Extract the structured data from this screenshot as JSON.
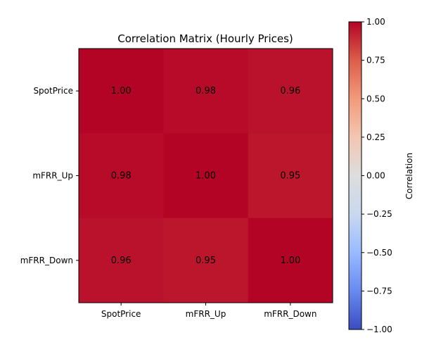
{
  "chart_data": {
    "type": "heatmap",
    "title": "Correlation Matrix (Hourly Prices)",
    "x_categories": [
      "SpotPrice",
      "mFRR_Up",
      "mFRR_Down"
    ],
    "y_categories": [
      "SpotPrice",
      "mFRR_Up",
      "mFRR_Down"
    ],
    "values": [
      [
        1.0,
        0.98,
        0.96
      ],
      [
        0.98,
        1.0,
        0.95
      ],
      [
        0.96,
        0.95,
        1.0
      ]
    ],
    "cell_labels": [
      [
        "1.00",
        "0.98",
        "0.96"
      ],
      [
        "0.98",
        "1.00",
        "0.95"
      ],
      [
        "0.96",
        "0.95",
        "1.00"
      ]
    ],
    "colormap": "coolwarm",
    "vmin": -1.0,
    "vmax": 1.0,
    "colorbar": {
      "label": "Correlation",
      "ticks": [
        -1.0,
        -0.75,
        -0.5,
        -0.25,
        0.0,
        0.25,
        0.5,
        0.75,
        1.0
      ],
      "tick_labels": [
        "−1.00",
        "−0.75",
        "−0.50",
        "−0.25",
        "0.00",
        "0.25",
        "0.50",
        "0.75",
        "1.00"
      ]
    },
    "colormap_stops": [
      "#3b4cc0",
      "#688aef",
      "#99baff",
      "#c9d8ef",
      "#dddddd",
      "#f3c6b2",
      "#f29b7a",
      "#dc5d4a",
      "#b40426"
    ]
  }
}
